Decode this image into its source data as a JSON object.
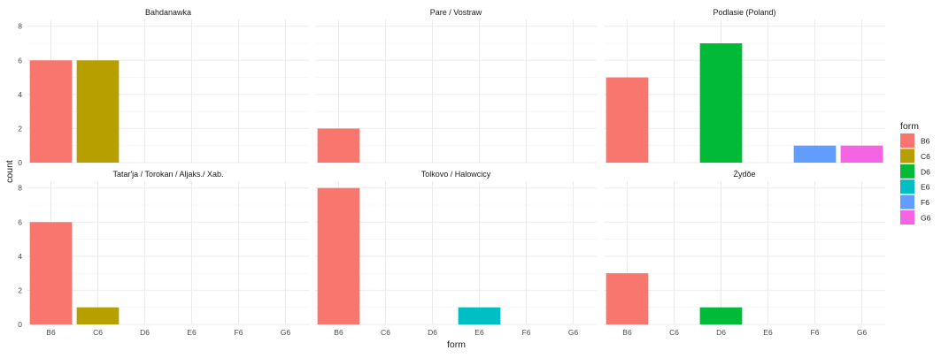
{
  "chart_data": {
    "type": "bar",
    "xlabel": "form",
    "ylabel": "count",
    "ylim": [
      0,
      8.4
    ],
    "yticks": [
      0,
      2,
      4,
      6,
      8
    ],
    "grid": true,
    "legend_position": "right",
    "categories": [
      "B6",
      "C6",
      "D6",
      "E6",
      "F6",
      "G6"
    ],
    "legend": {
      "title": "form",
      "items": [
        {
          "label": "B6",
          "color": "#F8766D"
        },
        {
          "label": "C6",
          "color": "#B79F00"
        },
        {
          "label": "D6",
          "color": "#00BA38"
        },
        {
          "label": "E6",
          "color": "#00BFC4"
        },
        {
          "label": "F6",
          "color": "#619CFF"
        },
        {
          "label": "G6",
          "color": "#F564E3"
        }
      ]
    },
    "panels": [
      {
        "title": "Bahdanawka",
        "values": [
          6,
          6,
          0,
          0,
          0,
          0
        ]
      },
      {
        "title": "Pare / Vostraw",
        "values": [
          2,
          0,
          0,
          0,
          0,
          0
        ]
      },
      {
        "title": "Podlasie (Poland)",
        "values": [
          5,
          0,
          7,
          0,
          1,
          1
        ]
      },
      {
        "title": "Tatar'ja / Torokan / Aljaks./ Xab.",
        "values": [
          6,
          1,
          0,
          0,
          0,
          0
        ]
      },
      {
        "title": "Tolkovo / Halowcicy",
        "values": [
          8,
          0,
          0,
          1,
          0,
          0
        ]
      },
      {
        "title": "Żydŏe",
        "values": [
          3,
          0,
          1,
          0,
          0,
          0
        ]
      }
    ]
  }
}
